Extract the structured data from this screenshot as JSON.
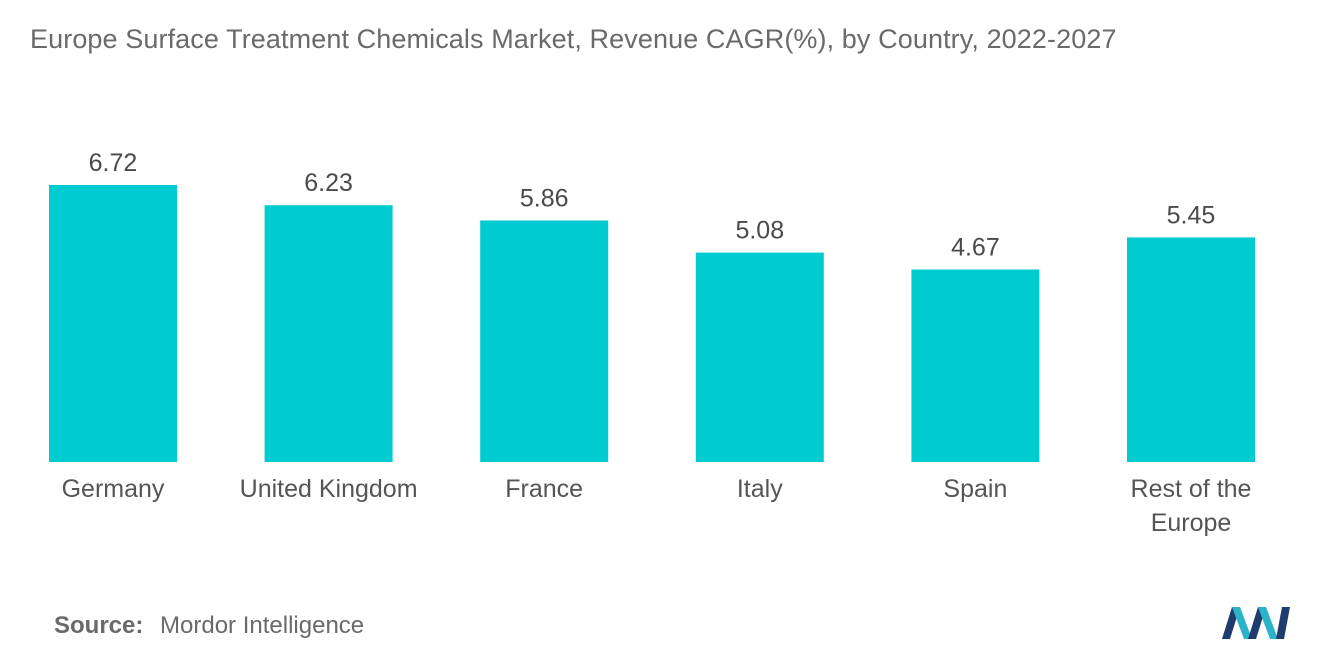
{
  "title": "Europe Surface Treatment Chemicals Market, Revenue CAGR(%), by Country, 2022-2027",
  "source": {
    "label": "Source:",
    "value": "Mordor Intelligence"
  },
  "logo": {
    "icon": "mordor-intelligence-logo-icon",
    "colors": [
      "#1f3c6e",
      "#2bb3c8"
    ]
  },
  "colors": {
    "bar": "#00cbd1"
  },
  "chart_data": {
    "type": "bar",
    "title": "Europe Surface Treatment Chemicals Market, Revenue CAGR(%), by Country, 2022-2027",
    "xlabel": "",
    "ylabel": "",
    "grid": false,
    "legend": "none",
    "ylim": [
      0,
      7.4
    ],
    "categories": [
      [
        "Germany"
      ],
      [
        "United Kingdom"
      ],
      [
        "France"
      ],
      [
        "Italy"
      ],
      [
        "Spain"
      ],
      [
        "Rest of the",
        "Europe"
      ]
    ],
    "values": [
      6.72,
      6.23,
      5.86,
      5.08,
      4.67,
      5.45
    ]
  }
}
